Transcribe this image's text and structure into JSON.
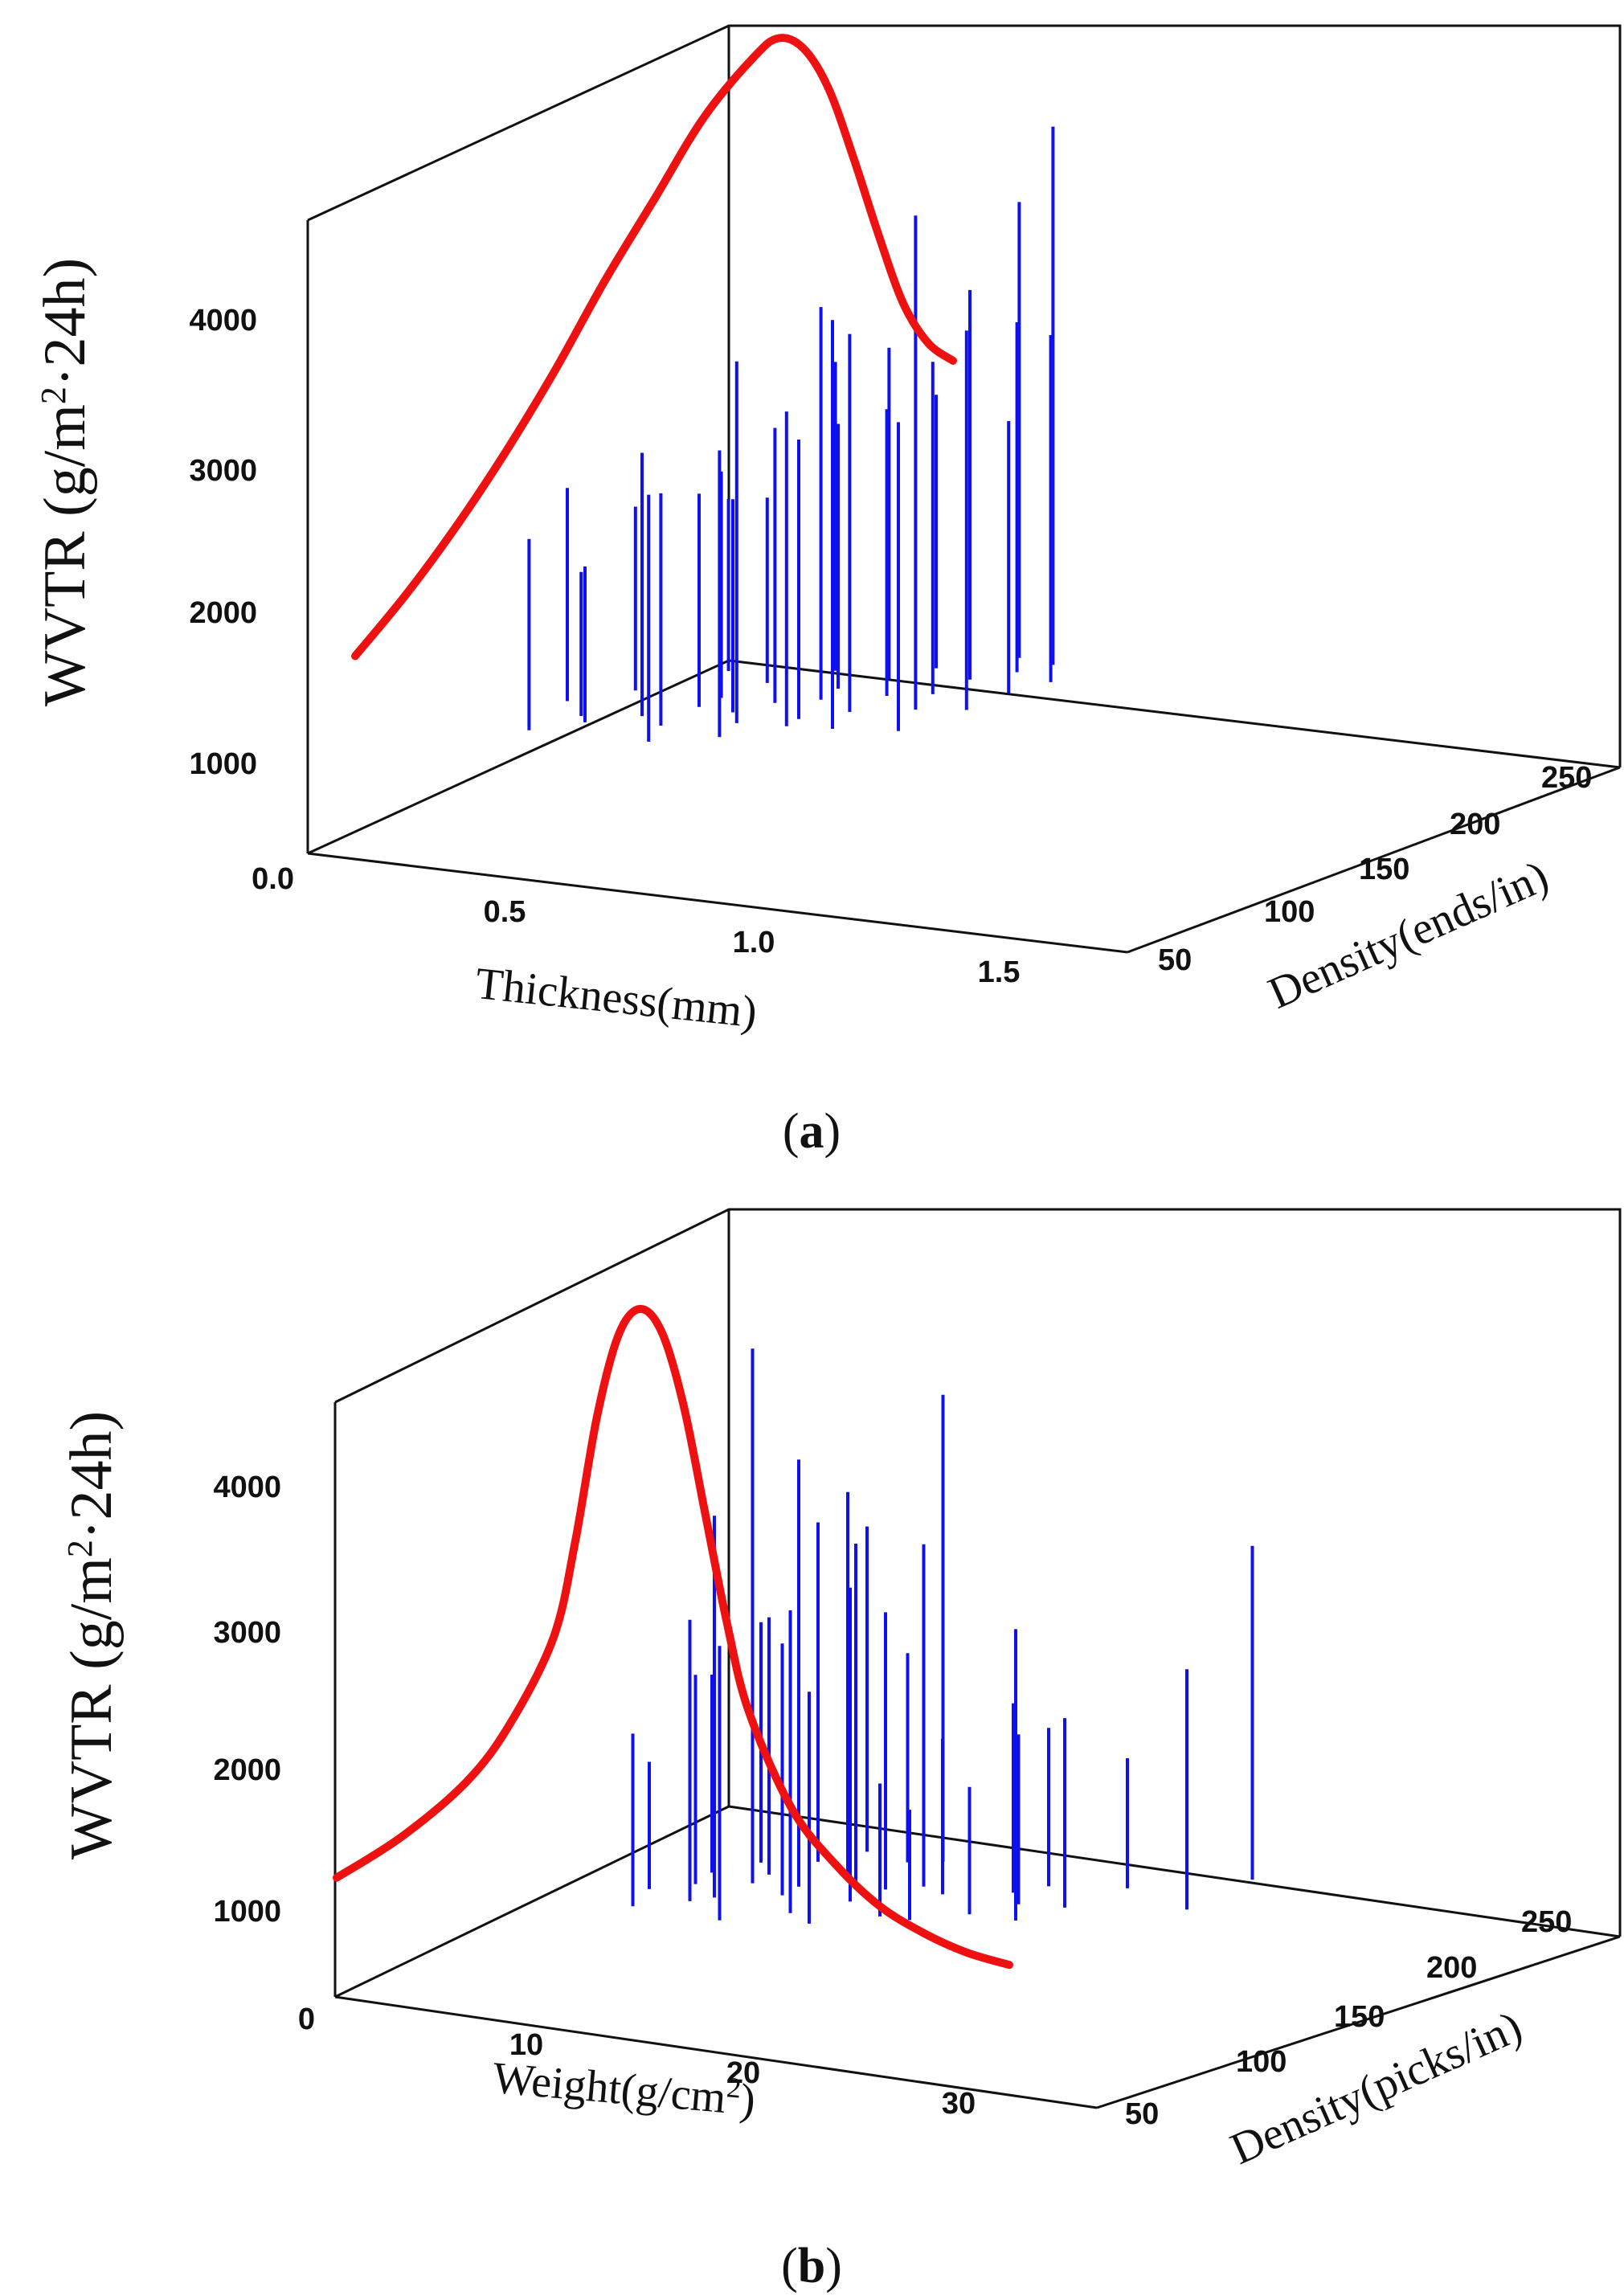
{
  "figure": {
    "panels": [
      {
        "label_open": "(",
        "label": "a",
        "label_close": ")",
        "ylabel_main": "WVTR (g/m",
        "ylabel_sup": "2",
        "ylabel_end": "·24h)",
        "xlabel": "Thickness(mm)",
        "zlabel": "Density(ends/in)",
        "y_ticks": [
          "0.0",
          "1000",
          "2000",
          "3000",
          "4000"
        ],
        "x_ticks": [
          "0.5",
          "1.0",
          "1.5"
        ],
        "z_ticks": [
          "50",
          "100",
          "150",
          "200",
          "250"
        ]
      },
      {
        "label_open": "(",
        "label": "b",
        "label_close": ")",
        "ylabel_main": "WVTR (g/m",
        "ylabel_sup": "2",
        "ylabel_end": "·24h)",
        "xlabel_main": "Weight(g/cm",
        "xlabel_sup": "2",
        "xlabel_end": ")",
        "zlabel": "Density(picks/in)",
        "y_ticks": [
          "0",
          "1000",
          "2000",
          "3000",
          "4000"
        ],
        "x_ticks": [
          "10",
          "20",
          "30"
        ],
        "z_ticks": [
          "50",
          "100",
          "150",
          "200",
          "250"
        ]
      }
    ]
  },
  "chart_data": [
    {
      "type": "3d-stem-with-fit-curve",
      "panel": "a",
      "x_axis": {
        "label": "Thickness(mm)",
        "ticks": [
          0.5,
          1.0,
          1.5
        ]
      },
      "z_axis": {
        "label": "Density(ends/in)",
        "ticks": [
          50,
          100,
          150,
          200,
          250
        ]
      },
      "y_axis": {
        "label": "WVTR (g/m2·24h)",
        "ticks": [
          0,
          1000,
          2000,
          3000,
          4000
        ]
      },
      "colors": {
        "stems": "#1010ee",
        "fit": "#ee1111"
      },
      "fit_curve": {
        "thickness": [
          0.2,
          0.3,
          0.4,
          0.5,
          0.6,
          0.7,
          0.8,
          0.9,
          1.0,
          1.05,
          1.1,
          1.15,
          1.2,
          1.25,
          1.3,
          1.35,
          1.4
        ],
        "wvtr": [
          1200,
          1650,
          2150,
          2700,
          3300,
          3950,
          4550,
          5150,
          5600,
          5750,
          5700,
          5450,
          5000,
          4500,
          4050,
          3800,
          3700
        ]
      },
      "stems": {
        "thickness": [
          0.4,
          0.42,
          0.44,
          0.46,
          0.5,
          0.53,
          0.55,
          0.58,
          0.6,
          0.62,
          0.64,
          0.66,
          0.68,
          0.7,
          0.72,
          0.74,
          0.75,
          0.77,
          0.78,
          0.8,
          0.82,
          0.84,
          0.85,
          0.87,
          0.88,
          0.9,
          0.92,
          0.94,
          0.95,
          0.97,
          0.98,
          1.0,
          1.02,
          1.04,
          1.06,
          1.08
        ],
        "density": [
          120,
          90,
          150,
          110,
          100,
          180,
          120,
          160,
          140,
          110,
          170,
          90,
          200,
          130,
          150,
          120,
          180,
          100,
          160,
          140,
          190,
          120,
          210,
          150,
          170,
          130,
          240,
          180,
          200,
          160,
          220,
          140,
          230,
          170,
          190,
          210
        ],
        "low": [
          650,
          600,
          600,
          620,
          640,
          630,
          610,
          560,
          600,
          620,
          640,
          620,
          600,
          650,
          630,
          640,
          600,
          650,
          630,
          600,
          650,
          660,
          640,
          630,
          650,
          620,
          600,
          640,
          650,
          640,
          620,
          600,
          640,
          620,
          650,
          640
        ],
        "high": [
          2100,
          1900,
          1850,
          1600,
          1700,
          1800,
          2400,
          2100,
          2050,
          2200,
          1900,
          2300,
          2700,
          2100,
          2500,
          3100,
          2400,
          2600,
          3300,
          2500,
          2900,
          2800,
          2500,
          3200,
          2600,
          3400,
          3700,
          2900,
          3300,
          4000,
          3000,
          2700,
          4300,
          3200,
          2500,
          3000
        ]
      }
    },
    {
      "type": "3d-stem-with-fit-curve",
      "panel": "b",
      "x_axis": {
        "label": "Weight(g/cm2)",
        "ticks": [
          10,
          20,
          30
        ]
      },
      "z_axis": {
        "label": "Density(picks/in)",
        "ticks": [
          50,
          100,
          150,
          200,
          250
        ]
      },
      "y_axis": {
        "label": "WVTR (g/m2·24h)",
        "ticks": [
          0,
          1000,
          2000,
          3000,
          4000
        ]
      },
      "colors": {
        "stems": "#1010ee",
        "fit": "#ee1111"
      },
      "fit_curve": {
        "weight": [
          1,
          4,
          7,
          9,
          11,
          12,
          13,
          14,
          15,
          16,
          17,
          18,
          19,
          20,
          22,
          24,
          26,
          28,
          30,
          32
        ],
        "wvtr": [
          800,
          1150,
          1600,
          2050,
          2700,
          3400,
          4300,
          4900,
          5100,
          4950,
          4450,
          3700,
          2950,
          2350,
          1700,
          1350,
          1100,
          950,
          850,
          800
        ]
      },
      "stems": {
        "weight": [
          11,
          11.5,
          12,
          12.5,
          13,
          13.5,
          14,
          14,
          14.5,
          15,
          15.5,
          16,
          16,
          16.5,
          17,
          17.5,
          18,
          18.5,
          19,
          19,
          19.5,
          20,
          20.5,
          21,
          22,
          23,
          24,
          24.5,
          25,
          25.5,
          26,
          27,
          28,
          32,
          32.5
        ],
        "density": [
          120,
          100,
          150,
          130,
          170,
          110,
          160,
          120,
          140,
          180,
          100,
          150,
          200,
          130,
          170,
          120,
          160,
          190,
          140,
          110,
          200,
          150,
          170,
          130,
          160,
          120,
          180,
          140,
          190,
          160,
          150,
          170,
          200,
          180,
          220
        ],
        "low": [
          600,
          580,
          600,
          620,
          600,
          610,
          580,
          600,
          620,
          600,
          560,
          580,
          600,
          620,
          580,
          560,
          600,
          620,
          580,
          560,
          600,
          640,
          580,
          560,
          600,
          620,
          560,
          600,
          580,
          600,
          540,
          560,
          580,
          600,
          640
        ],
        "high": [
          1500,
          1800,
          2000,
          2100,
          2300,
          2600,
          2400,
          3300,
          4400,
          3000,
          2500,
          3600,
          2900,
          2400,
          3300,
          2700,
          3000,
          2100,
          2800,
          2200,
          3900,
          2600,
          3000,
          1500,
          1700,
          1400,
          1900,
          1500,
          1700,
          1800,
          2600,
          1900,
          1500,
          2300,
          3000
        ]
      }
    }
  ]
}
